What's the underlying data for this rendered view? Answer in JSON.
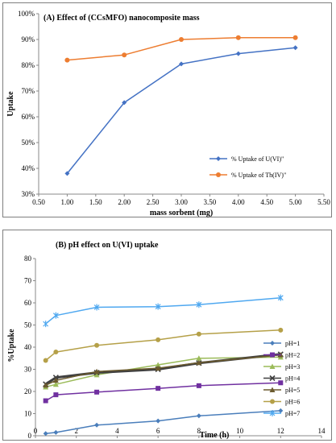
{
  "chart_data": [
    {
      "type": "line",
      "title": "(A) Effect of (CCsMFO) nanocomposite mass",
      "xlabel": "mass sorbent (mg)",
      "ylabel": "Uptake",
      "xlim": [
        0.5,
        5.5
      ],
      "ylim": [
        0.3,
        1.0
      ],
      "x_ticks": [
        "0.50",
        "1.00",
        "1.50",
        "2.00",
        "2.50",
        "3.00",
        "3.50",
        "4.00",
        "4.50",
        "5.00",
        "5.50"
      ],
      "y_ticks": [
        "30%",
        "40%",
        "50%",
        "60%",
        "70%",
        "80%",
        "90%",
        "100%"
      ],
      "x": [
        1,
        2,
        3,
        4,
        5
      ],
      "grid": false,
      "legend_position": "bottom-right",
      "series": [
        {
          "name": "% Uptake of U(VI)\"",
          "color": "#4472c4",
          "marker": "diamond",
          "values": [
            0.38,
            0.655,
            0.805,
            0.845,
            0.868
          ]
        },
        {
          "name": "% Uptake of Th(IV)\"",
          "color": "#ed7d31",
          "marker": "circle",
          "values": [
            0.82,
            0.84,
            0.9,
            0.907,
            0.907
          ]
        }
      ]
    },
    {
      "type": "line",
      "title": "(B) pH effect on U(VI) uptake",
      "xlabel": "Time (h)",
      "ylabel": "%Uptake",
      "xlim": [
        0,
        14
      ],
      "ylim": [
        0,
        80
      ],
      "x_ticks": [
        "0",
        "2",
        "4",
        "6",
        "8",
        "10",
        "12",
        "14"
      ],
      "y_ticks": [
        "0",
        "10",
        "20",
        "30",
        "40",
        "50",
        "60",
        "70",
        "80"
      ],
      "x": [
        0.5,
        1,
        3,
        6,
        8,
        12
      ],
      "grid": false,
      "legend_position": "right",
      "series": [
        {
          "name": "pH=1",
          "color": "#4a7ebb",
          "marker": "diamond",
          "values": [
            1,
            1.5,
            4.8,
            6.7,
            9,
            11.3
          ]
        },
        {
          "name": "pH=2",
          "color": "#7030a0",
          "marker": "square",
          "values": [
            15.8,
            18.5,
            19.7,
            21.4,
            22.6,
            23.9
          ]
        },
        {
          "name": "pH=3",
          "color": "#9bbb59",
          "marker": "triangle",
          "values": [
            22,
            23.2,
            27.5,
            32,
            35,
            35.5
          ]
        },
        {
          "name": "pH=4",
          "color": "#404040",
          "marker": "x",
          "values": [
            23.3,
            26.3,
            28.5,
            30,
            32.8,
            36.8
          ]
        },
        {
          "name": "pH=5",
          "color": "#6b5a2e",
          "marker": "triangle",
          "values": [
            22.8,
            25,
            29,
            30.5,
            33,
            36.5
          ]
        },
        {
          "name": "pH=6",
          "color": "#b5a048",
          "marker": "circle",
          "values": [
            34,
            37.8,
            40.8,
            43.3,
            45.9,
            47.7
          ]
        },
        {
          "name": "pH=7",
          "color": "#4fa8f0",
          "marker": "star",
          "values": [
            50.5,
            54.3,
            58,
            58.3,
            59.2,
            62.3
          ]
        }
      ]
    }
  ]
}
